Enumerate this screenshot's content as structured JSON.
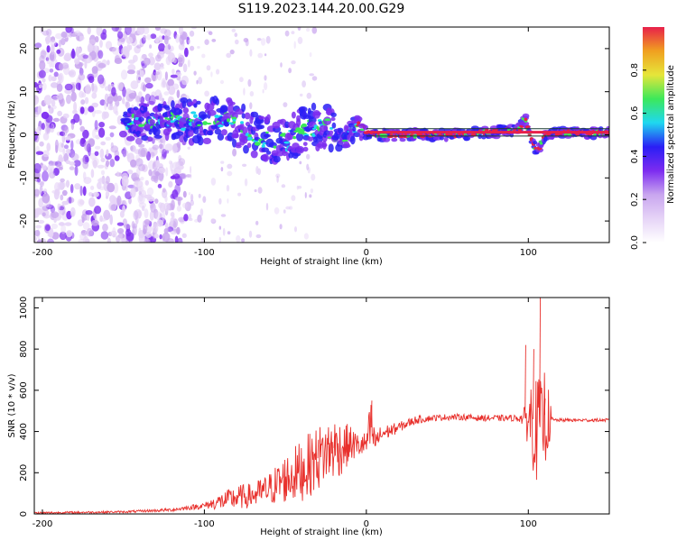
{
  "title": "S119.2023.144.20.00.G29",
  "colors": {
    "snr_line": "#e8302c",
    "axis": "#000000",
    "background": "#ffffff",
    "colormap": [
      "#ffffff",
      "#e6d4f7",
      "#c9a6ef",
      "#7d2cf0",
      "#2a1ef5",
      "#1fd8f0",
      "#3ce85a",
      "#e6e63a",
      "#f0a020",
      "#e8204a"
    ]
  },
  "chart_data": [
    {
      "type": "heatmap",
      "xlabel": "Height of straight line (km)",
      "ylabel": "Frequency (Hz)",
      "xlim": [
        -205,
        150
      ],
      "ylim": [
        -25,
        25
      ],
      "xticks": [
        -200,
        -100,
        0,
        100
      ],
      "yticks": [
        -20,
        -10,
        0,
        10,
        20
      ],
      "colorbar": {
        "label": "Normalized spectral amplitude",
        "range": [
          0,
          1
        ],
        "ticks": [
          "0.0",
          "0.2",
          "0.4",
          "0.6",
          "0.8"
        ],
        "placement": "right"
      },
      "ridge": {
        "x": [
          -150,
          -130,
          -120,
          -110,
          -100,
          -90,
          -80,
          -70,
          -60,
          -50,
          -40,
          -30,
          -25,
          -20,
          -15,
          -10,
          -5,
          0,
          10,
          50,
          90,
          95,
          98,
          100,
          103,
          106,
          110,
          120,
          150
        ],
        "freq": [
          3,
          3,
          3.5,
          3,
          3.5,
          3.5,
          2.5,
          0,
          -1,
          -2,
          1,
          2,
          2.5,
          -0.5,
          -1.5,
          0.5,
          2,
          0.5,
          0,
          0,
          1,
          1.5,
          4,
          1,
          -2,
          -4,
          0,
          0.5,
          0.5
        ]
      },
      "grid": false
    },
    {
      "type": "line",
      "xlabel": "Height of straight line (km)",
      "ylabel": "SNR (10 * v/v)",
      "xlim": [
        -205,
        150
      ],
      "ylim": [
        0,
        1050
      ],
      "xticks": [
        -200,
        -100,
        0,
        100
      ],
      "yticks": [
        0,
        200,
        400,
        600,
        800,
        1000
      ],
      "series": [
        {
          "x": [
            -205,
            -150,
            -120,
            -100,
            -90,
            -80,
            -70,
            -60,
            -50,
            -40,
            -30,
            -25,
            -20,
            -15,
            -10,
            -5,
            0,
            3,
            5,
            10,
            20,
            30,
            40,
            50,
            60,
            70,
            80,
            90,
            95,
            98,
            100,
            103,
            105,
            107,
            108,
            110,
            112,
            115,
            120,
            130,
            140,
            150
          ],
          "y": [
            5,
            10,
            20,
            40,
            60,
            80,
            90,
            120,
            170,
            210,
            270,
            300,
            320,
            320,
            340,
            330,
            340,
            420,
            350,
            390,
            420,
            455,
            465,
            470,
            470,
            465,
            465,
            465,
            465,
            465,
            460,
            460,
            400,
            480,
            420,
            480,
            455,
            455,
            455,
            455,
            455,
            455
          ],
          "y_spread": [
            5,
            5,
            8,
            15,
            40,
            60,
            60,
            80,
            120,
            150,
            160,
            150,
            160,
            130,
            90,
            60,
            60,
            150,
            60,
            40,
            25,
            20,
            15,
            15,
            15,
            15,
            15,
            15,
            20,
            60,
            150,
            250,
            250,
            200,
            200,
            240,
            180,
            10,
            8,
            8,
            8,
            8
          ]
        }
      ],
      "grid": false
    }
  ]
}
